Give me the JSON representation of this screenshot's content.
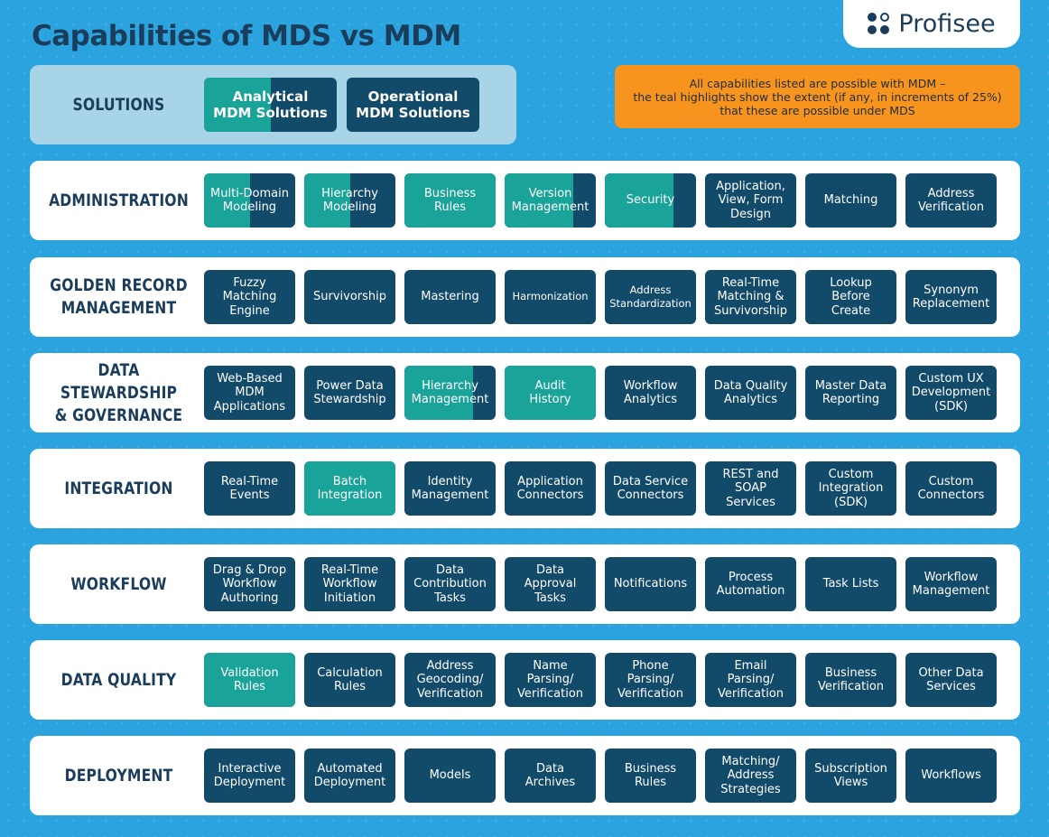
{
  "title": "Capabilities of MDS vs MDM",
  "logo": {
    "text": "Profisee",
    "icon": "profisee-dots-logo"
  },
  "note": {
    "lines": [
      "All capabilities listed are possible with MDM –",
      "the teal highlights show the extent (if any, in increments of 25%)",
      "that these are possible under MDS"
    ]
  },
  "colors": {
    "background": "#2aa3df",
    "box": "#124a6a",
    "highlight": "#1aa398",
    "note": "#f7941d",
    "heading": "#1b3d5c"
  },
  "solutions": {
    "label": "SOLUTIONS",
    "items": [
      {
        "lines": [
          "Analytical",
          "MDM Solutions"
        ],
        "mds_coverage": 50
      },
      {
        "lines": [
          "Operational",
          "MDM Solutions"
        ],
        "mds_coverage": 0
      }
    ]
  },
  "rows": [
    {
      "label": [
        "ADMINISTRATION"
      ],
      "items": [
        {
          "lines": [
            "Multi-Domain",
            "Modeling"
          ],
          "mds_coverage": 50
        },
        {
          "lines": [
            "Hierarchy",
            "Modeling"
          ],
          "mds_coverage": 50
        },
        {
          "lines": [
            "Business",
            "Rules"
          ],
          "mds_coverage": 100
        },
        {
          "lines": [
            "Version",
            "Management"
          ],
          "mds_coverage": 75
        },
        {
          "lines": [
            "Security"
          ],
          "mds_coverage": 75
        },
        {
          "lines": [
            "Application,",
            "View, Form",
            "Design"
          ],
          "mds_coverage": 0
        },
        {
          "lines": [
            "Matching"
          ],
          "mds_coverage": 0
        },
        {
          "lines": [
            "Address",
            "Verification"
          ],
          "mds_coverage": 0
        }
      ]
    },
    {
      "label": [
        "GOLDEN RECORD",
        "MANAGEMENT"
      ],
      "items": [
        {
          "lines": [
            "Fuzzy",
            "Matching",
            "Engine"
          ],
          "mds_coverage": 0
        },
        {
          "lines": [
            "Survivorship"
          ],
          "mds_coverage": 0
        },
        {
          "lines": [
            "Mastering"
          ],
          "mds_coverage": 0
        },
        {
          "lines": [
            "Harmonization"
          ],
          "mds_coverage": 0,
          "small": true
        },
        {
          "lines": [
            "Address",
            "Standardization"
          ],
          "mds_coverage": 0,
          "small": true
        },
        {
          "lines": [
            "Real-Time",
            "Matching &",
            "Survivorship"
          ],
          "mds_coverage": 0
        },
        {
          "lines": [
            "Lookup",
            "Before",
            "Create"
          ],
          "mds_coverage": 0
        },
        {
          "lines": [
            "Synonym",
            "Replacement"
          ],
          "mds_coverage": 0
        }
      ]
    },
    {
      "label": [
        "DATA STEWARDSHIP",
        "& GOVERNANCE"
      ],
      "items": [
        {
          "lines": [
            "Web-Based",
            "MDM",
            "Applications"
          ],
          "mds_coverage": 0
        },
        {
          "lines": [
            "Power Data",
            "Stewardship"
          ],
          "mds_coverage": 0
        },
        {
          "lines": [
            "Hierarchy",
            "Management"
          ],
          "mds_coverage": 75
        },
        {
          "lines": [
            "Audit",
            "History"
          ],
          "mds_coverage": 100
        },
        {
          "lines": [
            "Workflow",
            "Analytics"
          ],
          "mds_coverage": 0
        },
        {
          "lines": [
            "Data Quality",
            "Analytics"
          ],
          "mds_coverage": 0
        },
        {
          "lines": [
            "Master Data",
            "Reporting"
          ],
          "mds_coverage": 0
        },
        {
          "lines": [
            "Custom UX",
            "Development",
            "(SDK)"
          ],
          "mds_coverage": 0
        }
      ]
    },
    {
      "label": [
        "INTEGRATION"
      ],
      "items": [
        {
          "lines": [
            "Real-Time",
            "Events"
          ],
          "mds_coverage": 0
        },
        {
          "lines": [
            "Batch",
            "Integration"
          ],
          "mds_coverage": 100
        },
        {
          "lines": [
            "Identity",
            "Management"
          ],
          "mds_coverage": 0
        },
        {
          "lines": [
            "Application",
            "Connectors"
          ],
          "mds_coverage": 0
        },
        {
          "lines": [
            "Data Service",
            "Connectors"
          ],
          "mds_coverage": 0
        },
        {
          "lines": [
            "REST and",
            "SOAP",
            "Services"
          ],
          "mds_coverage": 0
        },
        {
          "lines": [
            "Custom",
            "Integration",
            "(SDK)"
          ],
          "mds_coverage": 0
        },
        {
          "lines": [
            "Custom",
            "Connectors"
          ],
          "mds_coverage": 0
        }
      ]
    },
    {
      "label": [
        "WORKFLOW"
      ],
      "items": [
        {
          "lines": [
            "Drag & Drop",
            "Workflow",
            "Authoring"
          ],
          "mds_coverage": 0
        },
        {
          "lines": [
            "Real-Time",
            "Workflow",
            "Initiation"
          ],
          "mds_coverage": 0
        },
        {
          "lines": [
            "Data",
            "Contribution",
            "Tasks"
          ],
          "mds_coverage": 0
        },
        {
          "lines": [
            "Data",
            "Approval",
            "Tasks"
          ],
          "mds_coverage": 0
        },
        {
          "lines": [
            "Notifications"
          ],
          "mds_coverage": 0
        },
        {
          "lines": [
            "Process",
            "Automation"
          ],
          "mds_coverage": 0
        },
        {
          "lines": [
            "Task Lists"
          ],
          "mds_coverage": 0
        },
        {
          "lines": [
            "Workflow",
            "Management"
          ],
          "mds_coverage": 0
        }
      ]
    },
    {
      "label": [
        "DATA QUALITY"
      ],
      "items": [
        {
          "lines": [
            "Validation",
            "Rules"
          ],
          "mds_coverage": 100
        },
        {
          "lines": [
            "Calculation",
            "Rules"
          ],
          "mds_coverage": 0
        },
        {
          "lines": [
            "Address",
            "Geocoding/",
            "Verification"
          ],
          "mds_coverage": 0
        },
        {
          "lines": [
            "Name",
            "Parsing/",
            "Verification"
          ],
          "mds_coverage": 0
        },
        {
          "lines": [
            "Phone",
            "Parsing/",
            "Verification"
          ],
          "mds_coverage": 0
        },
        {
          "lines": [
            "Email",
            "Parsing/",
            "Verification"
          ],
          "mds_coverage": 0
        },
        {
          "lines": [
            "Business",
            "Verification"
          ],
          "mds_coverage": 0
        },
        {
          "lines": [
            "Other Data",
            "Services"
          ],
          "mds_coverage": 0
        }
      ]
    },
    {
      "label": [
        "DEPLOYMENT"
      ],
      "items": [
        {
          "lines": [
            "Interactive",
            "Deployment"
          ],
          "mds_coverage": 0
        },
        {
          "lines": [
            "Automated",
            "Deployment"
          ],
          "mds_coverage": 0
        },
        {
          "lines": [
            "Models"
          ],
          "mds_coverage": 0
        },
        {
          "lines": [
            "Data",
            "Archives"
          ],
          "mds_coverage": 0
        },
        {
          "lines": [
            "Business",
            "Rules"
          ],
          "mds_coverage": 0
        },
        {
          "lines": [
            "Matching/",
            "Address",
            "Strategies"
          ],
          "mds_coverage": 0
        },
        {
          "lines": [
            "Subscription",
            "Views"
          ],
          "mds_coverage": 0
        },
        {
          "lines": [
            "Workflows"
          ],
          "mds_coverage": 0
        }
      ]
    }
  ]
}
